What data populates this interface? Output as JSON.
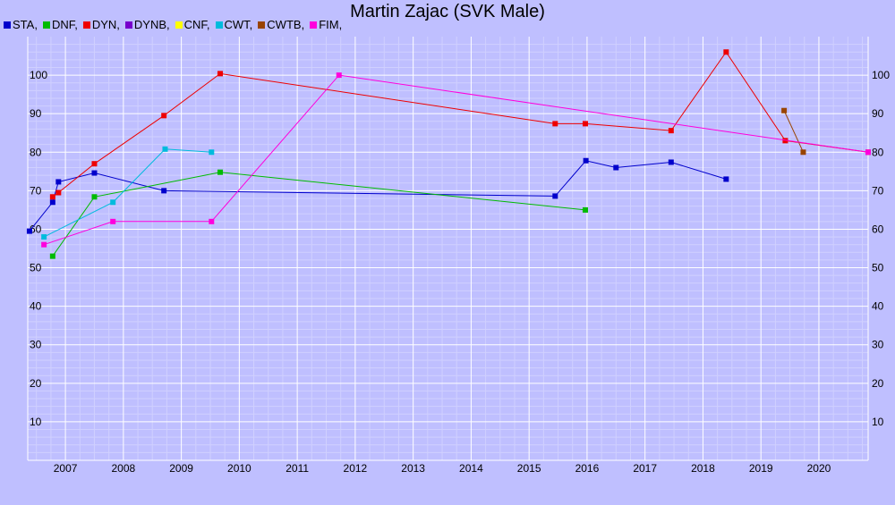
{
  "chart_data": {
    "type": "line",
    "title": "Martin Zajac (SVK Male)",
    "xlabel": "",
    "ylabel": "",
    "xlim": [
      2006.35,
      2020.85
    ],
    "ylim": [
      0,
      110
    ],
    "grid": true,
    "legend_position": "top-left",
    "x_ticks": [
      "2007",
      "2008",
      "2009",
      "2010",
      "2011",
      "2012",
      "2013",
      "2014",
      "2015",
      "2016",
      "2017",
      "2018",
      "2019",
      "2020"
    ],
    "y_ticks": [
      "10",
      "20",
      "30",
      "40",
      "50",
      "60",
      "70",
      "80",
      "90",
      "100"
    ],
    "legend": [
      {
        "label": "STA,",
        "color": "#0000cc"
      },
      {
        "label": "DNF,",
        "color": "#00bb00"
      },
      {
        "label": "DYN,",
        "color": "#ee0000"
      },
      {
        "label": "DYNB,",
        "color": "#7700cc"
      },
      {
        "label": "CNF,",
        "color": "#ffff00"
      },
      {
        "label": "CWT,",
        "color": "#00bbdd"
      },
      {
        "label": "CWTB,",
        "color": "#994400"
      },
      {
        "label": "FIM,",
        "color": "#ff00dd"
      }
    ],
    "series": [
      {
        "name": "STA",
        "color": "#0000cc",
        "points": [
          [
            2006.38,
            59.5
          ],
          [
            2006.78,
            67
          ],
          [
            2006.88,
            72.3
          ],
          [
            2007.5,
            74.6
          ],
          [
            2008.7,
            70
          ],
          [
            2015.45,
            68.6
          ],
          [
            2015.98,
            77.8
          ],
          [
            2016.5,
            76
          ],
          [
            2017.45,
            77.4
          ],
          [
            2018.4,
            73
          ]
        ]
      },
      {
        "name": "DNF",
        "color": "#00bb00",
        "points": [
          [
            2006.78,
            53
          ],
          [
            2007.5,
            68.4
          ],
          [
            2009.67,
            74.8
          ],
          [
            2015.97,
            65
          ]
        ]
      },
      {
        "name": "DYN",
        "color": "#ee0000",
        "points": [
          [
            2006.78,
            68.4
          ],
          [
            2006.88,
            69.5
          ],
          [
            2007.5,
            77
          ],
          [
            2008.7,
            89.5
          ],
          [
            2009.67,
            100.4
          ],
          [
            2015.45,
            87.4
          ],
          [
            2015.97,
            87.4
          ],
          [
            2017.45,
            85.6
          ],
          [
            2018.4,
            106
          ],
          [
            2019.42,
            83
          ],
          [
            2020.85,
            80
          ]
        ]
      },
      {
        "name": "CWT",
        "color": "#00bbdd",
        "points": [
          [
            2006.63,
            58
          ],
          [
            2007.82,
            67
          ],
          [
            2008.72,
            80.8
          ],
          [
            2009.52,
            80
          ]
        ]
      },
      {
        "name": "CWTB",
        "color": "#994400",
        "points": [
          [
            2019.4,
            90.8
          ],
          [
            2019.73,
            80
          ]
        ]
      },
      {
        "name": "FIM",
        "color": "#ff00dd",
        "points": [
          [
            2006.63,
            56
          ],
          [
            2007.82,
            62
          ],
          [
            2009.52,
            62
          ],
          [
            2011.72,
            100
          ],
          [
            2020.85,
            80
          ]
        ]
      }
    ]
  }
}
